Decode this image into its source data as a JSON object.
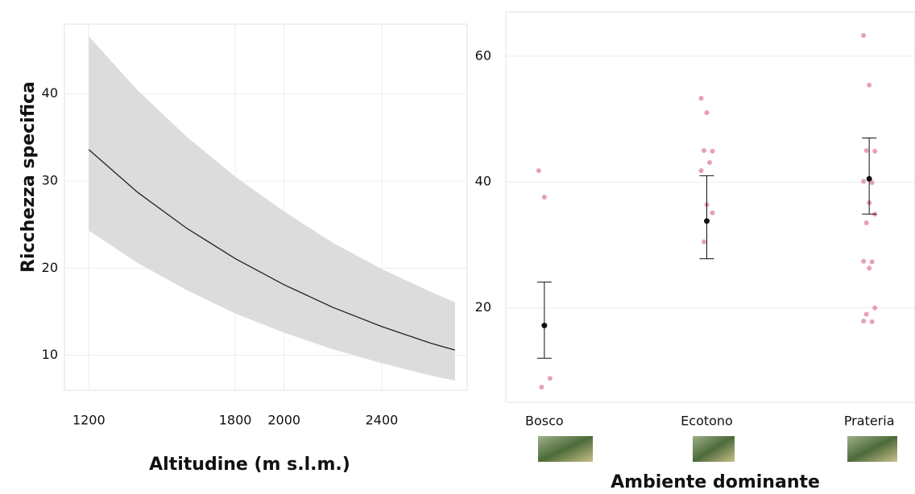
{
  "chart_data": [
    {
      "type": "line",
      "y_label": "Ricchezza specifica",
      "x_label": "Altitudine (m s.l.m.)",
      "x": [
        1200,
        1400,
        1600,
        1800,
        2000,
        2200,
        2400,
        2600,
        2700
      ],
      "values": [
        33.6,
        28.7,
        24.6,
        21.1,
        18.1,
        15.5,
        13.3,
        11.4,
        10.6
      ],
      "upper": [
        46.6,
        40.4,
        35.1,
        30.5,
        26.5,
        22.9,
        19.9,
        17.3,
        16.1
      ],
      "lower": [
        24.3,
        20.6,
        17.5,
        14.8,
        12.6,
        10.7,
        9.1,
        7.7,
        7.1
      ],
      "color": "#222222",
      "band_color": "#dcdcdc",
      "xlim": [
        1100,
        2750
      ],
      "xticks": [
        1200,
        1800,
        2000,
        2400
      ],
      "ylim": [
        6,
        48
      ],
      "yticks": [
        10,
        20,
        30,
        40
      ],
      "grid": true
    },
    {
      "type": "errorbar",
      "x_label": "Ambiente dominante",
      "categories": [
        "Bosco",
        "Ecotono",
        "Prateria"
      ],
      "means": [
        17.2,
        33.8,
        40.5
      ],
      "lower": [
        12.0,
        27.8,
        34.9
      ],
      "upper": [
        24.1,
        41.0,
        47.0
      ],
      "points": [
        [
          41.8,
          37.6,
          8.8,
          7.4
        ],
        [
          53.3,
          51.0,
          44.9,
          45.0,
          43.1,
          41.8,
          36.4,
          35.1,
          30.5
        ],
        [
          63.3,
          55.4,
          44.9,
          45.0,
          39.9,
          40.1,
          36.7,
          34.9,
          33.5,
          27.3,
          27.4,
          26.3,
          20.0,
          19.0,
          17.8,
          17.9
        ]
      ],
      "color": "#111111",
      "point_color": "#e8a0b4",
      "ylim": [
        5,
        67
      ],
      "yticks": [
        20,
        40,
        60
      ],
      "grid": true
    }
  ]
}
